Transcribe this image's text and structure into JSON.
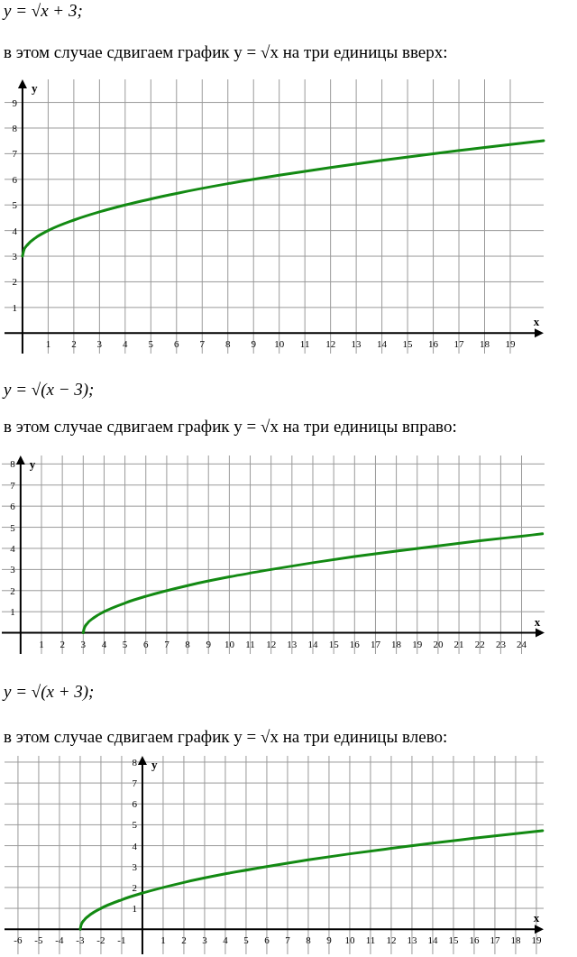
{
  "chart_data": [
    {
      "type": "line",
      "title": "y = √x + 3;",
      "subtitle": "в этом случае сдвигаем график y = √x на три единицы вверх:",
      "xlabel": "x",
      "ylabel": "y",
      "xlim": [
        -0.7,
        20.3
      ],
      "ylim": [
        -0.8,
        9.9
      ],
      "xticks": [
        1,
        2,
        3,
        4,
        5,
        6,
        7,
        8,
        9,
        10,
        11,
        12,
        13,
        14,
        15,
        16,
        17,
        18,
        19
      ],
      "yticks": [
        1,
        2,
        3,
        4,
        5,
        6,
        7,
        8,
        9
      ],
      "grid": true,
      "marker": "none",
      "line_style": "solid",
      "series": [
        {
          "color": "#138a13",
          "x": [
            0,
            0.05,
            0.2,
            0.5,
            1,
            2,
            3,
            4,
            6,
            8,
            10,
            12,
            14,
            16,
            18,
            20.3
          ],
          "values": [
            3,
            3.22,
            3.45,
            3.71,
            4,
            4.41,
            4.73,
            5,
            5.45,
            5.83,
            6.16,
            6.46,
            6.74,
            7,
            7.24,
            7.51
          ]
        }
      ]
    },
    {
      "type": "line",
      "title": "y = √(x − 3);",
      "subtitle": "в этом случае сдвигаем график y = √x на три единицы вправо:",
      "xlabel": "x",
      "ylabel": "y",
      "xlim": [
        -0.9,
        25.1
      ],
      "ylim": [
        -1,
        8.4
      ],
      "xticks": [
        1,
        2,
        3,
        4,
        5,
        6,
        7,
        8,
        9,
        10,
        11,
        12,
        13,
        14,
        15,
        16,
        17,
        18,
        19,
        20,
        21,
        22,
        23,
        24
      ],
      "yticks": [
        1,
        2,
        3,
        4,
        5,
        6,
        7,
        8
      ],
      "grid": true,
      "marker": "none",
      "line_style": "solid",
      "series": [
        {
          "color": "#138a13",
          "x": [
            3,
            3.05,
            3.2,
            3.5,
            4,
            5,
            6,
            8,
            10,
            12,
            14,
            16,
            18,
            20,
            22,
            24,
            25
          ],
          "values": [
            0,
            0.22,
            0.45,
            0.71,
            1,
            1.41,
            1.73,
            2.24,
            2.65,
            3,
            3.32,
            3.61,
            3.87,
            4.12,
            4.36,
            4.58,
            4.69
          ]
        }
      ]
    },
    {
      "type": "line",
      "title": "y = √(x + 3);",
      "subtitle": "в этом случае сдвигаем график y = √x на три единицы влево:",
      "xlabel": "x",
      "ylabel": "y",
      "xlim": [
        -6.65,
        19.35
      ],
      "ylim": [
        -1.2,
        8.3
      ],
      "xticks": [
        -6,
        -5,
        -4,
        -3,
        -2,
        -1,
        1,
        2,
        3,
        4,
        5,
        6,
        7,
        8,
        9,
        10,
        11,
        12,
        13,
        14,
        15,
        16,
        17,
        18,
        19
      ],
      "yticks": [
        1,
        2,
        3,
        4,
        5,
        6,
        7,
        8
      ],
      "grid": true,
      "marker": "none",
      "line_style": "solid",
      "series": [
        {
          "color": "#138a13",
          "x": [
            -3,
            -2.95,
            -2.8,
            -2.5,
            -2,
            -1,
            0,
            2,
            4,
            6,
            8,
            10,
            12,
            14,
            16,
            19.3
          ],
          "values": [
            0,
            0.22,
            0.45,
            0.71,
            1,
            1.41,
            1.73,
            2.24,
            2.65,
            3,
            3.32,
            3.61,
            3.87,
            4.12,
            4.36,
            4.72
          ]
        }
      ]
    }
  ]
}
